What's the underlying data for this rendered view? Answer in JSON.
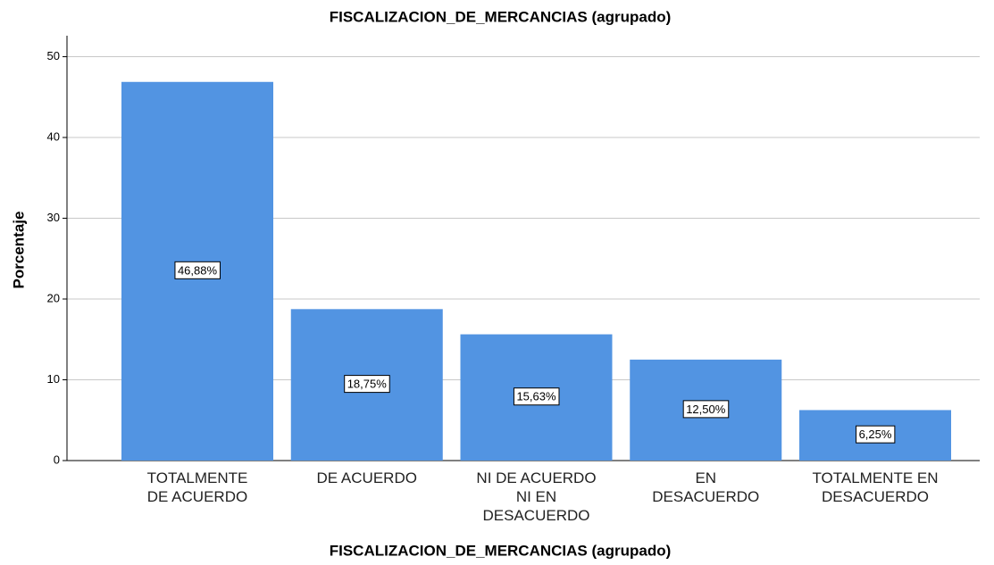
{
  "chart_data": {
    "type": "bar",
    "title": "FISCALIZACION_DE_MERCANCIAS (agrupado)",
    "x_label": "FISCALIZACION_DE_MERCANCIAS (agrupado)",
    "y_label": "Porcentaje",
    "categories": [
      "TOTALMENTE\nDE ACUERDO",
      "DE ACUERDO",
      "NI DE ACUERDO\nNI EN\nDESACUERDO",
      "EN\nDESACUERDO",
      "TOTALMENTE EN\nDESACUERDO"
    ],
    "values": [
      46.88,
      18.75,
      15.63,
      12.5,
      6.25
    ],
    "value_labels": [
      "46,88%",
      "18,75%",
      "15,63%",
      "12,50%",
      "6,25%"
    ],
    "color": "#5294e2",
    "ylim": [
      0,
      52.6
    ],
    "yticks": [
      0,
      10,
      20,
      30,
      40,
      50
    ],
    "grid": true
  }
}
